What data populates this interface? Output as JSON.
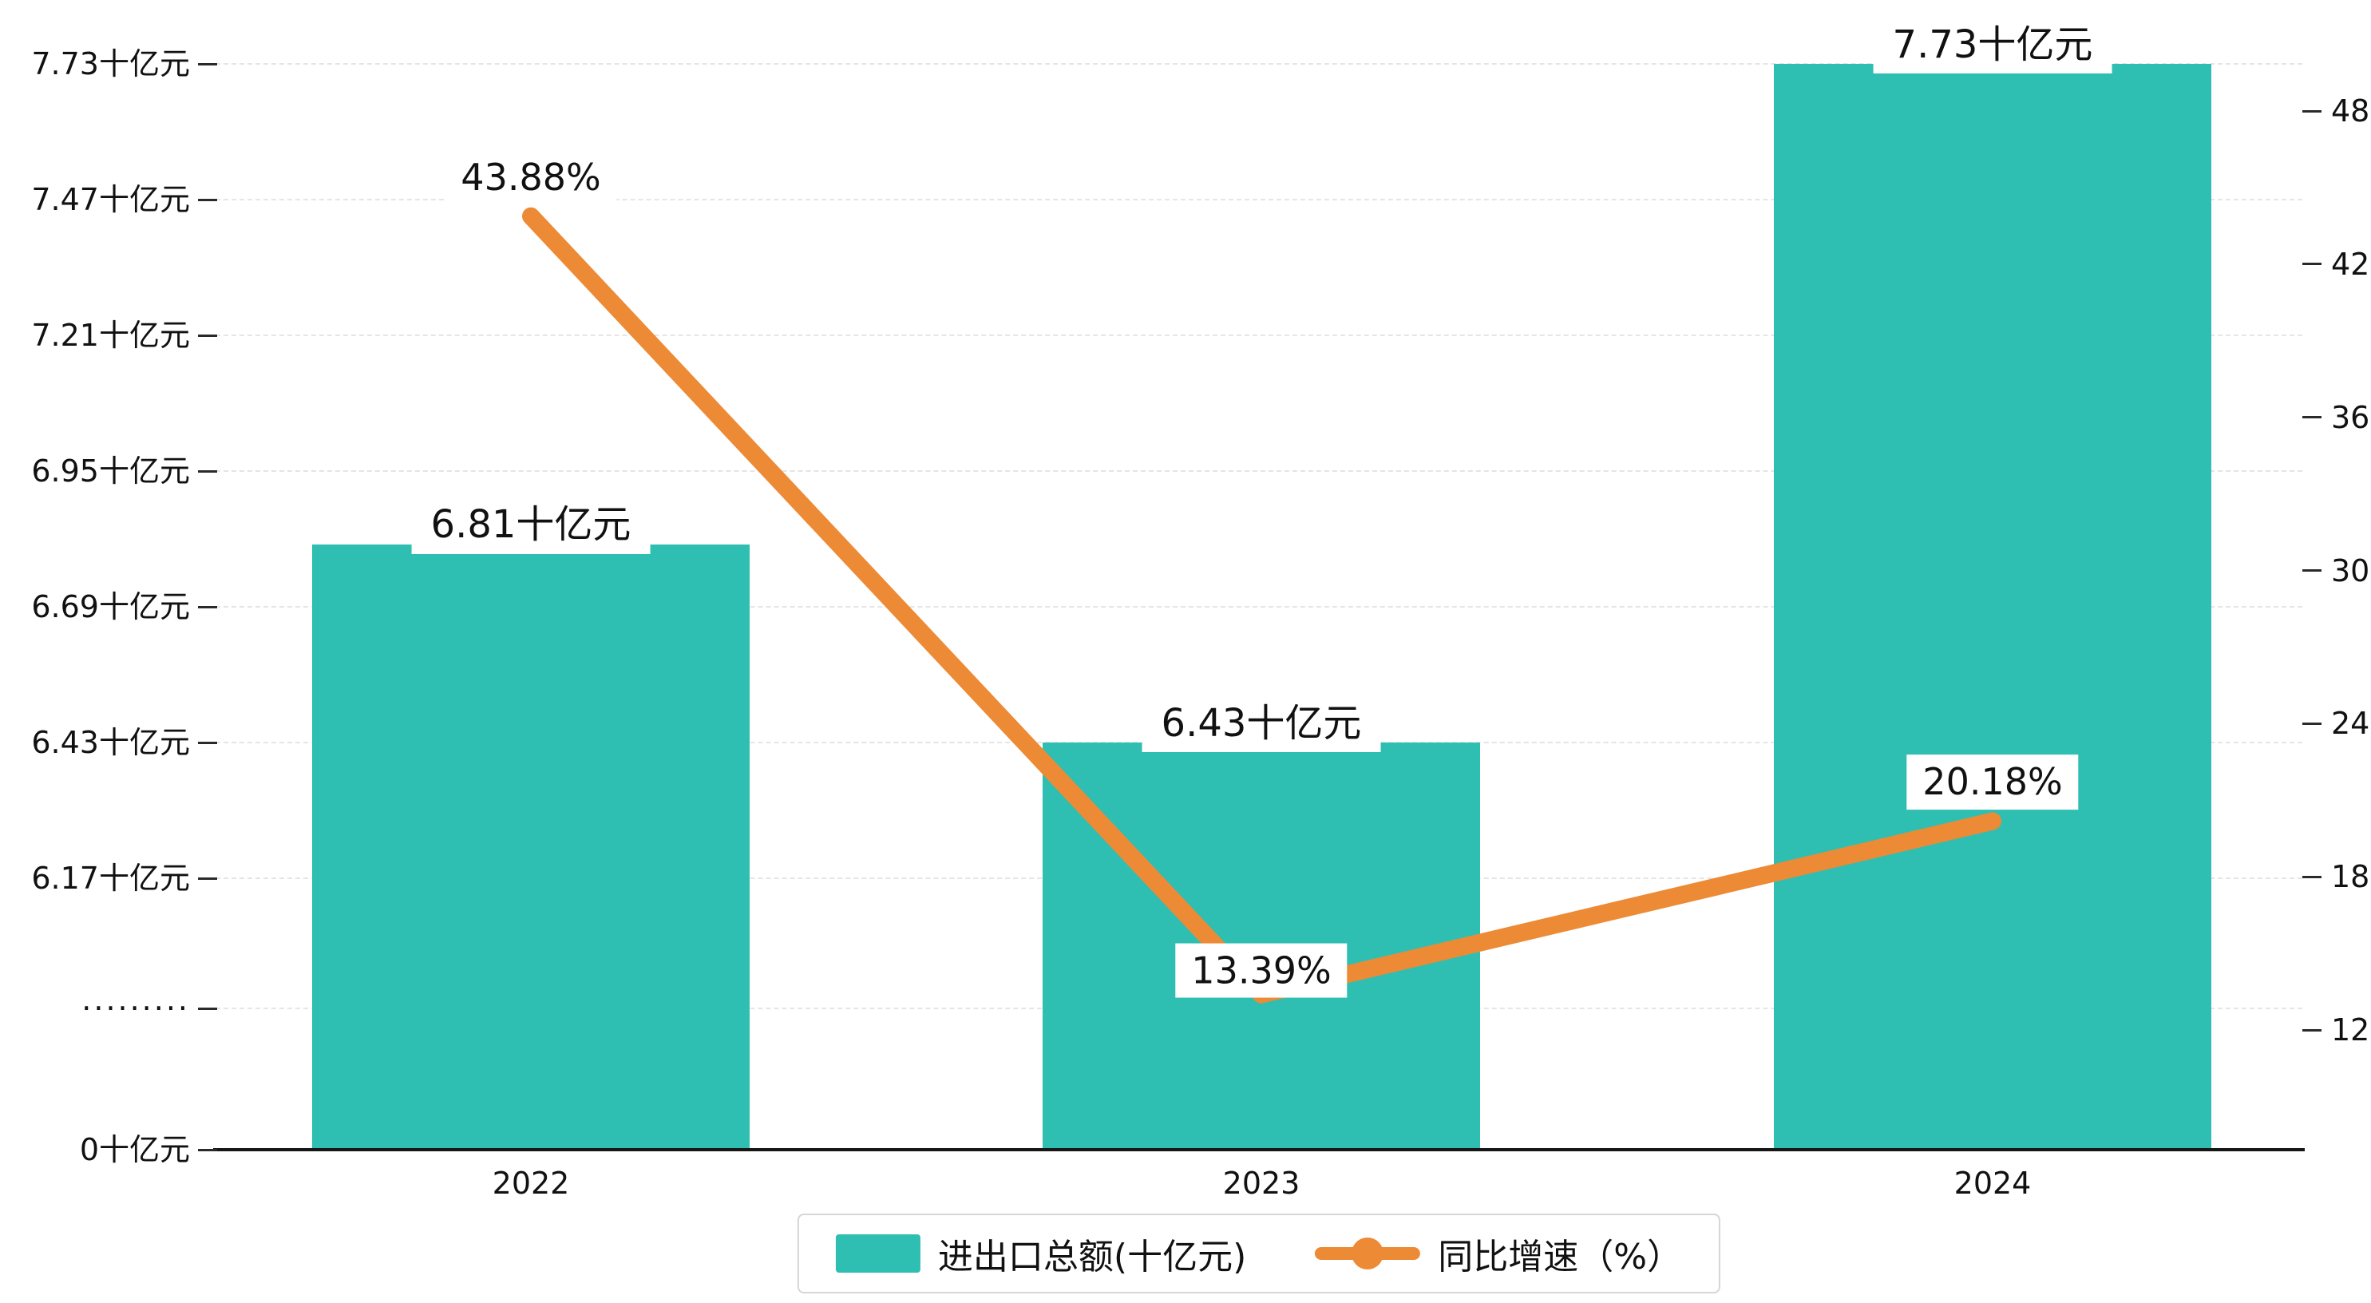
{
  "chart_data": {
    "type": "bar+line",
    "title": "",
    "categories": [
      "2022",
      "2023",
      "2024"
    ],
    "series": [
      {
        "name": "进出口总额(十亿元)",
        "type": "bar",
        "axis": "left",
        "values": [
          6.81,
          6.43,
          7.73
        ],
        "data_labels": [
          "6.81十亿元",
          "6.43十亿元",
          "7.73十亿元"
        ],
        "color": "#2ebfb2"
      },
      {
        "name": "同比增速（%）",
        "type": "line",
        "axis": "right",
        "values": [
          43.88,
          13.39,
          20.18
        ],
        "data_labels": [
          "43.88%",
          "13.39%",
          "20.18%"
        ],
        "color": "#ed8a35"
      }
    ],
    "left_axis": {
      "tick_labels": [
        "7.73十亿元",
        "7.47十亿元",
        "7.21十亿元",
        "6.95十亿元",
        "6.69十亿元",
        "6.43十亿元",
        "6.17十亿元"
      ],
      "tick_values": [
        7.73,
        7.47,
        7.21,
        6.95,
        6.69,
        6.43,
        6.17
      ],
      "break_label": "·········",
      "zero_label": "0十亿元",
      "axis_break": true,
      "range_shown": [
        6.17,
        7.73
      ]
    },
    "right_axis": {
      "tick_labels": [
        "48",
        "42",
        "36",
        "30",
        "24",
        "18",
        "12"
      ],
      "tick_values": [
        48,
        42,
        36,
        30,
        24,
        18,
        12
      ],
      "min": 12,
      "max": 48
    },
    "x_axis": {
      "labels": [
        "2022",
        "2023",
        "2024"
      ]
    },
    "grid": {
      "style": "dashed",
      "orientation": "horizontal"
    },
    "legend": {
      "position": "bottom-center",
      "entries": [
        "进出口总额(十亿元)",
        "同比增速（%）"
      ]
    },
    "colors": {
      "bar": "#2ebfb2",
      "line": "#ed8a35",
      "grid": "#e5e5e5",
      "axis": "#161616",
      "text": "#111111",
      "label_background": "#ffffff",
      "legend_border": "#d6d6d6"
    }
  }
}
